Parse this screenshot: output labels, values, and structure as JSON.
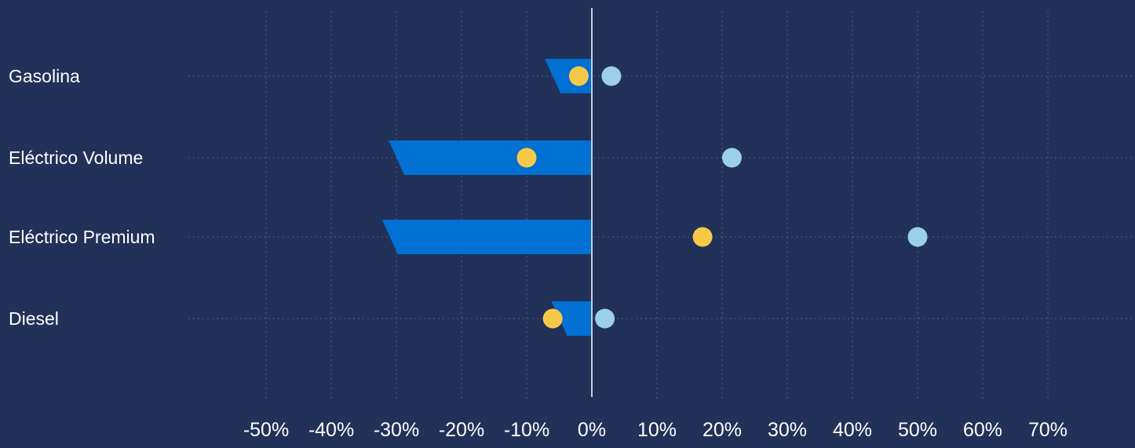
{
  "chart_data": {
    "type": "bar",
    "orientation": "horizontal",
    "categories": [
      "Gasolina",
      "Eléctrico Volume",
      "Eléctrico Premium",
      "Diesel"
    ],
    "series": [
      {
        "kind": "bar",
        "color": "#0070d2",
        "values": [
          -6,
          -30,
          -31,
          -5
        ]
      },
      {
        "kind": "dot",
        "color": "#f7c948",
        "values": [
          -2,
          -10,
          17,
          -6
        ]
      },
      {
        "kind": "dot",
        "color": "#9ccfe8",
        "values": [
          3,
          21.5,
          50,
          2
        ]
      }
    ],
    "xlim": [
      -50,
      70
    ],
    "xticks": [
      -50,
      -40,
      -30,
      -20,
      -10,
      0,
      10,
      20,
      30,
      40,
      50,
      60,
      70
    ],
    "xtick_labels": [
      "-50%",
      "-40%",
      "-30%",
      "-20%",
      "-10%",
      "0%",
      "10%",
      "20%",
      "30%",
      "40%",
      "50%",
      "60%",
      "70%"
    ],
    "grid": true,
    "colors": {
      "background": "#213158",
      "grid": "#54607f",
      "zero_line": "#c9ced8",
      "text": "#ffffff"
    }
  }
}
